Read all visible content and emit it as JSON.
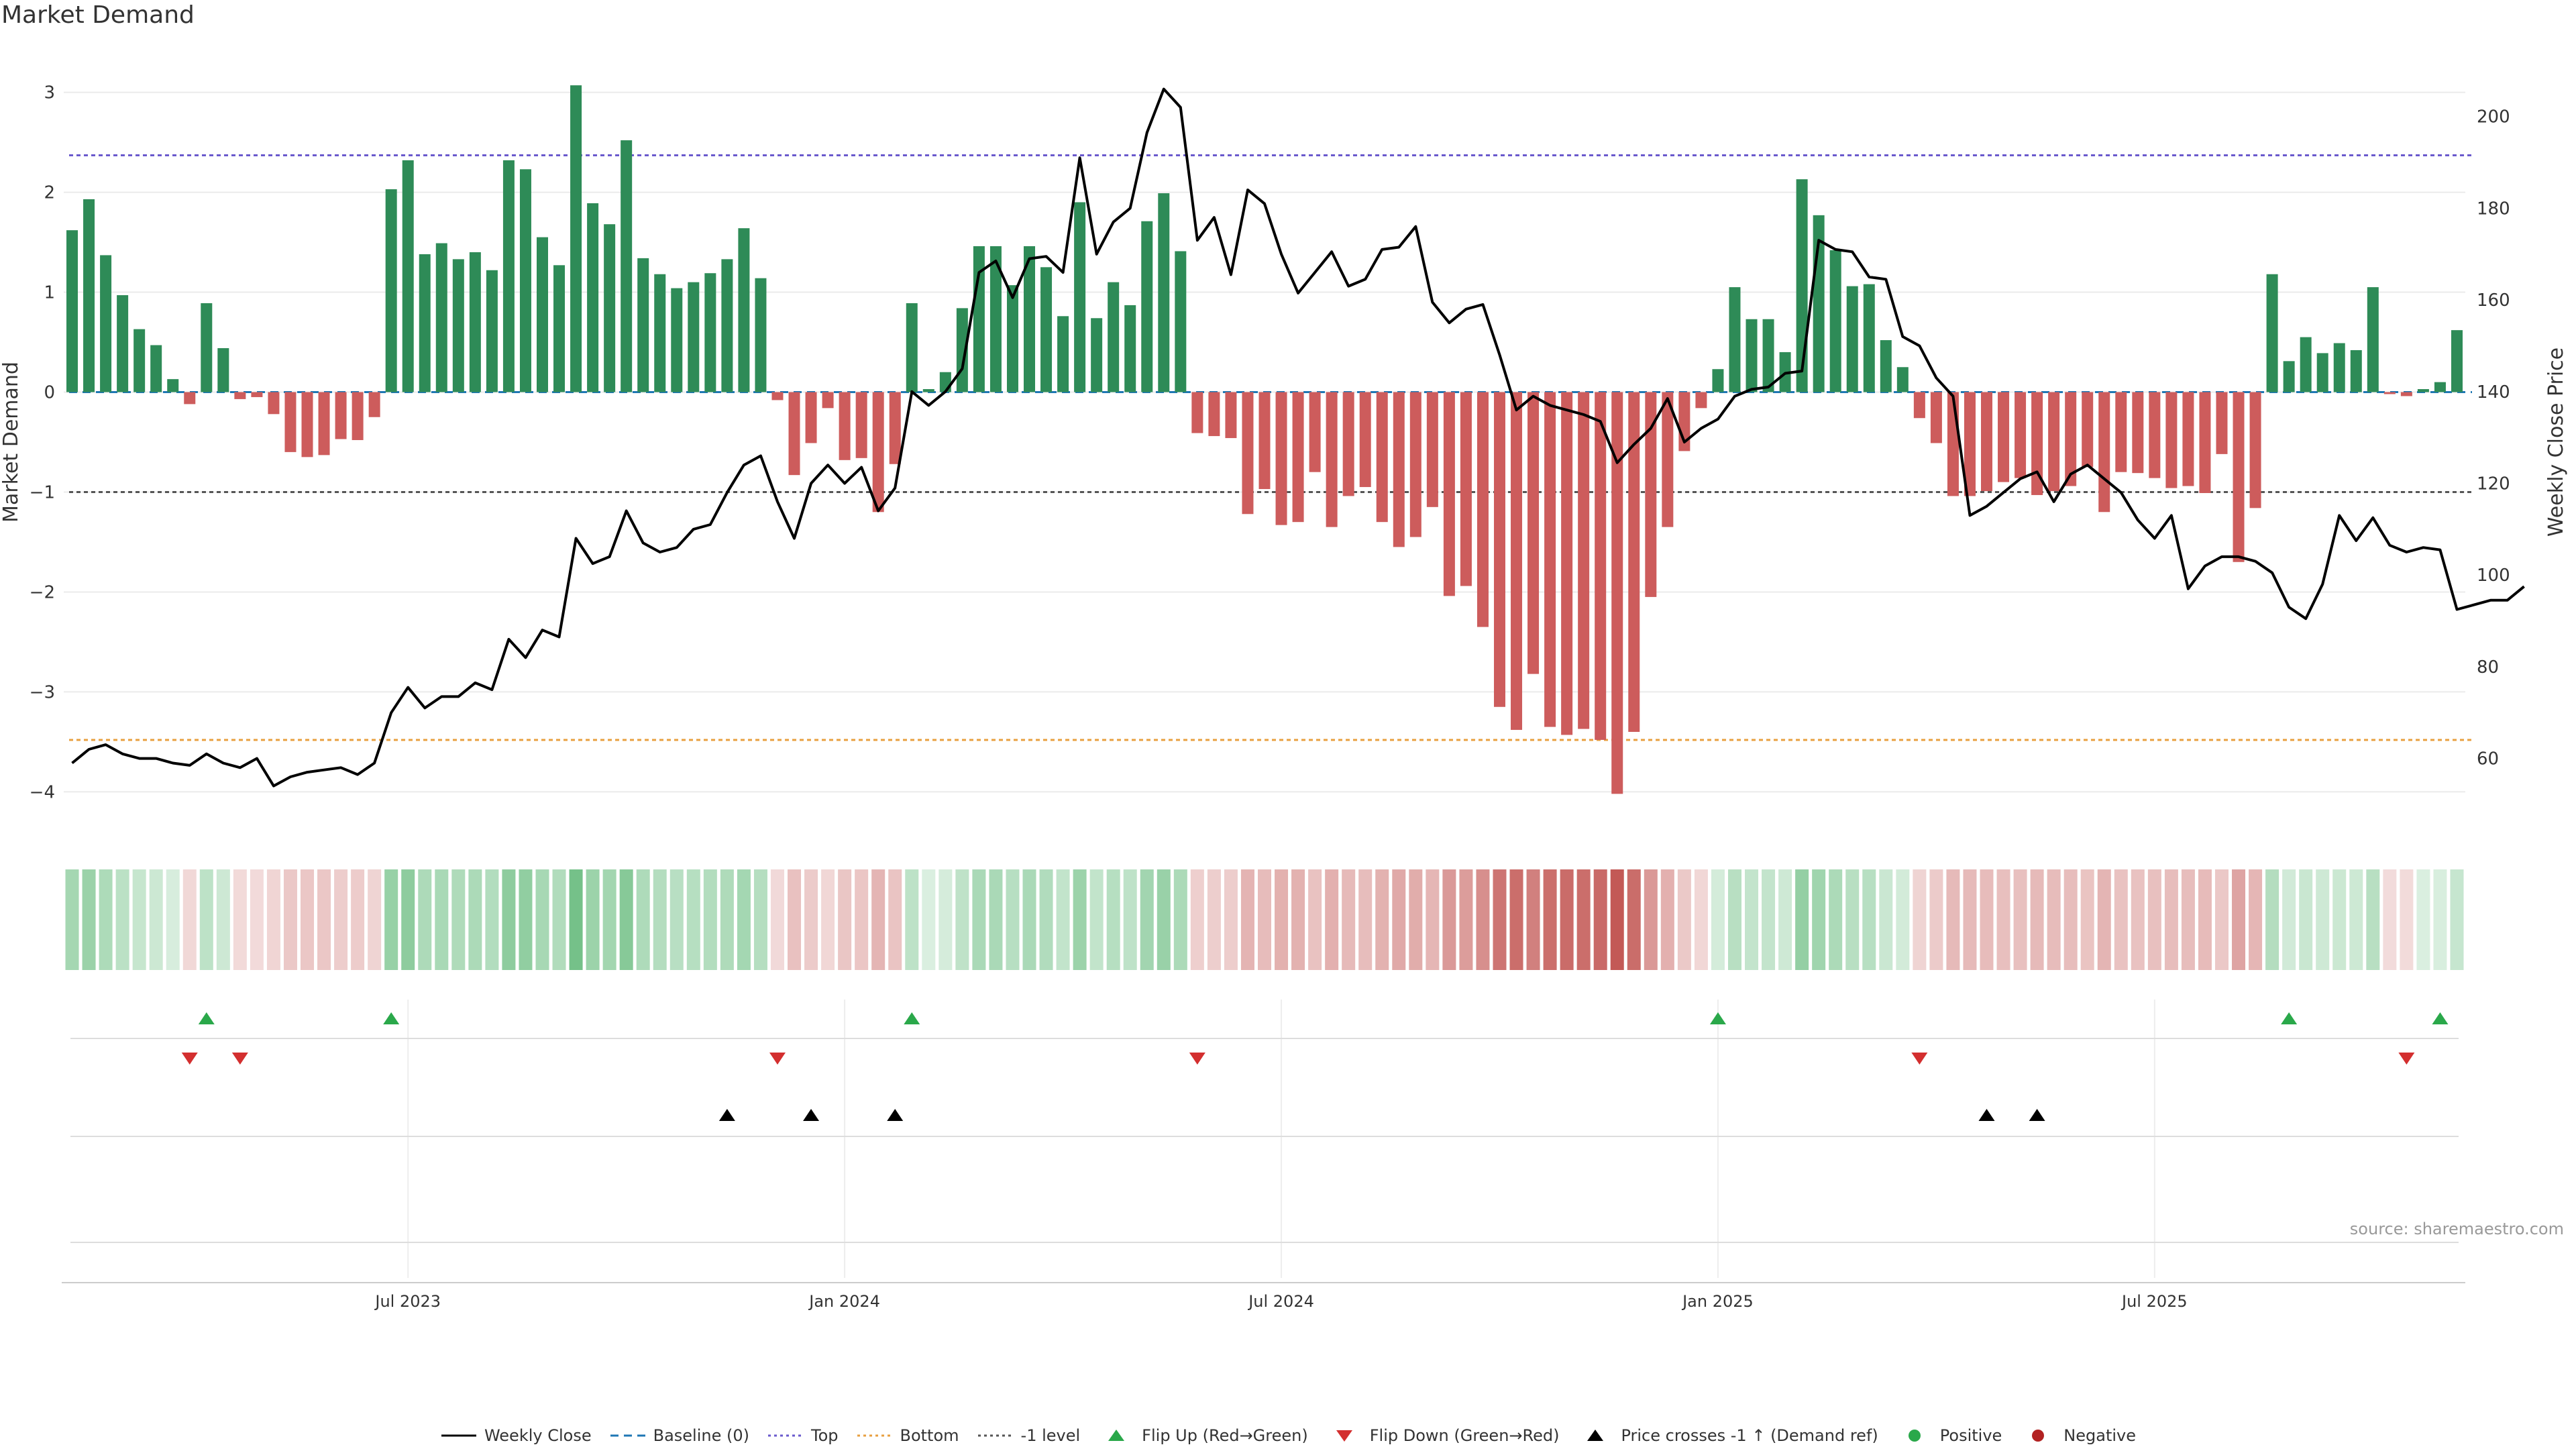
{
  "title": "Market Demand",
  "source": "source: sharemaestro.com",
  "colors": {
    "positive": "#2e8b57",
    "negative": "#cd5c5c",
    "price_line": "#000000",
    "top_line": "#6a5acd",
    "bottom_line": "#e8a040",
    "minus1_line": "#555555",
    "baseline": "#1f77b4",
    "flip_up": "#2aa84a",
    "flip_down": "#d32f2f",
    "cross": "#000000"
  },
  "legend": [
    {
      "label": "Weekly Close",
      "marker": "line",
      "color": "#000000"
    },
    {
      "label": "Baseline (0)",
      "marker": "dash",
      "color": "#1f77b4"
    },
    {
      "label": "Top",
      "marker": "dot",
      "color": "#6a5acd"
    },
    {
      "label": "Bottom",
      "marker": "dot",
      "color": "#e8a040"
    },
    {
      "label": "-1 level",
      "marker": "dot",
      "color": "#555555"
    },
    {
      "label": "Flip Up (Red→Green)",
      "marker": "tri-up",
      "color": "#2aa84a"
    },
    {
      "label": "Flip Down (Green→Red)",
      "marker": "tri-down",
      "color": "#d32f2f"
    },
    {
      "label": "Price crosses -1 ↑ (Demand ref)",
      "marker": "tri-up",
      "color": "#000000"
    },
    {
      "label": "Positive",
      "marker": "circle",
      "color": "#2aa84a"
    },
    {
      "label": "Negative",
      "marker": "circle",
      "color": "#b22222"
    }
  ],
  "chart_data": {
    "type": "bar",
    "title": "Market Demand",
    "ylabel": "Market Demand",
    "y2label": "Weekly Close Price",
    "ylim": [
      -4.4,
      3.4
    ],
    "y2lim": [
      44,
      214
    ],
    "yticks": [
      3,
      2,
      1,
      0,
      -1,
      -2,
      -3,
      -4
    ],
    "y2ticks": [
      200,
      180,
      160,
      140,
      120,
      100,
      80,
      60
    ],
    "levels": {
      "top": 2.37,
      "bottom": -3.48,
      "minus1": -1,
      "baseline": 0
    },
    "x_labels": [
      {
        "label": "Jul 2023",
        "week": 20
      },
      {
        "label": "Jan 2024",
        "week": 46
      },
      {
        "label": "Jul 2024",
        "week": 72
      },
      {
        "label": "Jan 2025",
        "week": 98
      },
      {
        "label": "Jul 2025",
        "week": 124
      }
    ],
    "demand": [
      1.62,
      1.93,
      1.37,
      0.97,
      0.63,
      0.47,
      0.13,
      -0.12,
      0.89,
      0.44,
      -0.07,
      -0.05,
      -0.22,
      -0.6,
      -0.65,
      -0.63,
      -0.47,
      -0.48,
      -0.25,
      2.03,
      2.32,
      1.38,
      1.49,
      1.33,
      1.4,
      1.22,
      2.32,
      2.23,
      1.55,
      1.27,
      3.07,
      1.89,
      1.68,
      2.52,
      1.34,
      1.18,
      1.04,
      1.1,
      1.19,
      1.33,
      1.64,
      1.14,
      -0.08,
      -0.83,
      -0.51,
      -0.16,
      -0.68,
      -0.66,
      -1.2,
      -0.72,
      0.89,
      0.03,
      0.2,
      0.84,
      1.46,
      1.46,
      1.07,
      1.46,
      1.25,
      0.76,
      1.9,
      0.74,
      1.1,
      0.87,
      1.71,
      1.99,
      1.41,
      -0.41,
      -0.44,
      -0.46,
      -1.22,
      -0.97,
      -1.33,
      -1.3,
      -0.8,
      -1.35,
      -1.04,
      -0.95,
      -1.3,
      -1.55,
      -1.45,
      -1.15,
      -2.04,
      -1.94,
      -2.35,
      -3.15,
      -3.38,
      -2.82,
      -3.35,
      -3.43,
      -3.37,
      -3.48,
      -4.02,
      -3.4,
      -2.05,
      -1.35,
      -0.59,
      -0.16,
      0.23,
      1.05,
      0.73,
      0.73,
      0.4,
      2.13,
      1.77,
      1.42,
      1.06,
      1.08,
      0.52,
      0.25,
      -0.26,
      -0.51,
      -1.04,
      -1.04,
      -0.99,
      -0.9,
      -0.86,
      -1.03,
      -0.99,
      -0.94,
      -0.75,
      -1.2,
      -0.8,
      -0.81,
      -0.86,
      -0.96,
      -0.94,
      -1.01,
      -0.62,
      -1.7,
      -1.16,
      1.18,
      0.31,
      0.55,
      0.39,
      0.49,
      0.42,
      1.05,
      -0.02,
      -0.04,
      0.03,
      0.1,
      0.62
    ],
    "price": [
      59,
      62,
      63,
      61,
      60,
      60,
      59,
      58.5,
      61,
      59,
      58,
      60,
      54,
      56,
      57,
      57.5,
      58,
      56.5,
      59,
      70,
      75.5,
      71,
      73.5,
      73.5,
      76.5,
      75,
      86,
      82,
      88,
      86.5,
      108,
      102.5,
      104,
      114,
      107,
      105,
      106,
      110,
      111,
      118,
      124,
      126,
      116,
      108,
      120,
      124,
      120,
      123.5,
      114,
      119,
      140,
      137,
      140,
      145,
      166,
      168.5,
      160.5,
      169,
      169.5,
      166,
      191,
      170,
      177,
      180,
      196.5,
      206,
      202,
      173,
      178,
      165.5,
      184,
      181,
      170,
      161.5,
      166,
      170.5,
      163,
      164.5,
      171,
      171.5,
      176,
      159.5,
      155,
      158,
      159,
      148,
      136,
      139,
      137,
      136,
      135,
      133.5,
      124.5,
      128.5,
      132,
      138.5,
      129,
      132,
      134,
      139,
      140.5,
      141,
      144,
      144.5,
      173,
      171,
      170.5,
      165,
      164.5,
      152,
      150,
      143,
      139,
      113,
      115,
      118,
      121,
      122.5,
      116,
      122,
      124,
      121,
      118,
      112,
      108,
      113,
      97,
      102,
      104,
      104,
      103,
      100.5,
      93,
      90.5,
      98,
      113,
      107.5,
      112.5,
      106.5,
      105,
      106,
      105.5,
      92.5,
      93.5,
      94.5,
      94.5,
      97.5
    ],
    "flip_up_weeks": [
      8,
      19,
      50,
      98,
      132,
      141
    ],
    "flip_down_weeks": [
      7,
      10,
      42,
      67,
      110,
      139
    ],
    "price_cross_weeks": [
      39,
      44,
      49,
      114,
      117
    ]
  }
}
